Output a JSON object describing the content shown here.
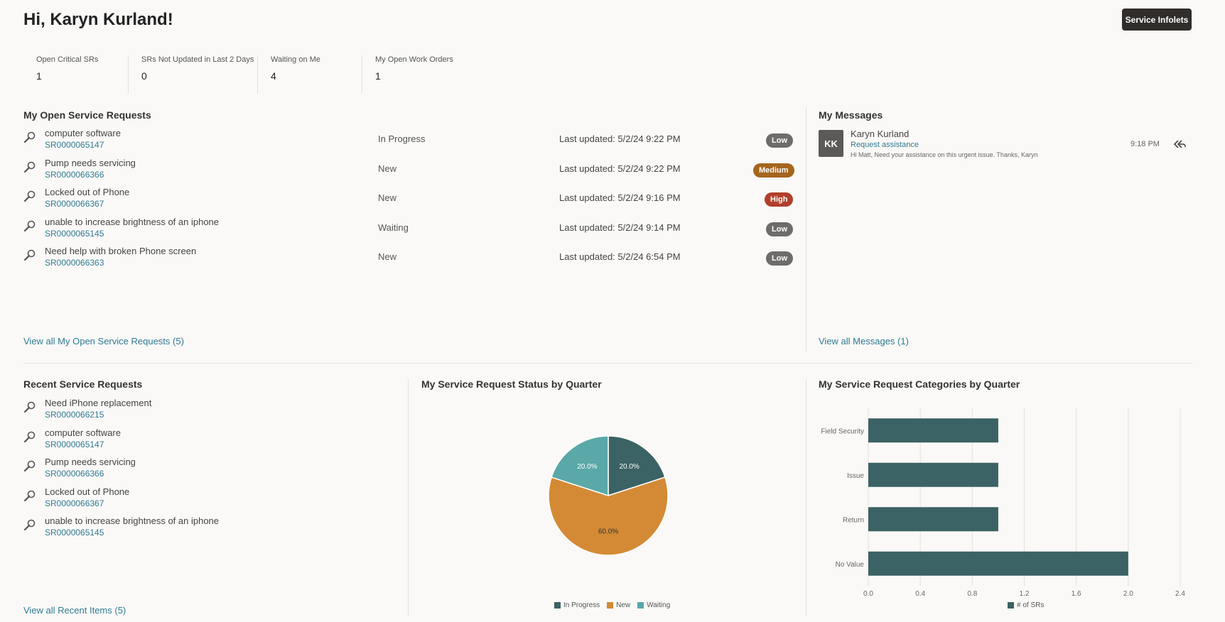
{
  "header": {
    "greeting": "Hi, Karyn Kurland!",
    "infolets_button": "Service Infolets"
  },
  "metrics": [
    {
      "label": "Open Critical SRs",
      "value": "1"
    },
    {
      "label": "SRs Not Updated in Last 2 Days",
      "value": "0"
    },
    {
      "label": "Waiting on Me",
      "value": "4"
    },
    {
      "label": "My Open Work Orders",
      "value": "1"
    }
  ],
  "open_srs": {
    "title": "My Open Service Requests",
    "rows": [
      {
        "title": "computer software",
        "number": "SR0000065147",
        "status": "In Progress",
        "updated": "Last updated: 5/2/24 9:22 PM",
        "priority": "Low",
        "priority_color": "#6e6c69"
      },
      {
        "title": "Pump needs servicing",
        "number": "SR0000066366",
        "status": "New",
        "updated": "Last updated: 5/2/24 9:22 PM",
        "priority": "Medium",
        "priority_color": "#a5651e"
      },
      {
        "title": "Locked out of Phone",
        "number": "SR0000066367",
        "status": "New",
        "updated": "Last updated: 5/2/24 9:16 PM",
        "priority": "High",
        "priority_color": "#b13f2b"
      },
      {
        "title": "unable to increase brightness of an iphone",
        "number": "SR0000065145",
        "status": "Waiting",
        "updated": "Last updated: 5/2/24 9:14 PM",
        "priority": "Low",
        "priority_color": "#6e6c69"
      },
      {
        "title": "Need help with broken Phone screen",
        "number": "SR0000066363",
        "status": "New",
        "updated": "Last updated: 5/2/24 6:54 PM",
        "priority": "Low",
        "priority_color": "#6e6c69"
      }
    ],
    "view_all": "View all My Open Service Requests (5)"
  },
  "messages": {
    "title": "My Messages",
    "items": [
      {
        "initials": "KK",
        "sender": "Karyn Kurland",
        "subject": "Request assistance",
        "preview": "Hi Matt, Need your assistance on this urgent issue. Thanks, Karyn",
        "time": "9:18 PM"
      }
    ],
    "view_all": "View all Messages (1)"
  },
  "recent_srs": {
    "title": "Recent Service Requests",
    "rows": [
      {
        "title": "Need iPhone replacement",
        "number": "SR0000066215"
      },
      {
        "title": "computer software",
        "number": "SR0000065147"
      },
      {
        "title": "Pump needs servicing",
        "number": "SR0000066366"
      },
      {
        "title": "Locked out of Phone",
        "number": "SR0000066367"
      },
      {
        "title": "unable to increase brightness of an iphone",
        "number": "SR0000065145"
      }
    ],
    "view_all": "View all Recent Items (5)"
  },
  "icons": {
    "sr_icon": "wrench-icon",
    "reply_icon": "reply-all-icon"
  },
  "chart_data": [
    {
      "type": "pie",
      "title": "My Service Request Status by Quarter",
      "categories": [
        "In Progress",
        "New",
        "Waiting"
      ],
      "values": [
        20.0,
        60.0,
        20.0
      ],
      "labels": [
        "20.0%",
        "60.0%",
        "20.0%"
      ],
      "colors": [
        "#3b6264",
        "#d48a35",
        "#5aa8a8"
      ],
      "legend": "bottom"
    },
    {
      "type": "bar",
      "orientation": "horizontal",
      "title": "My Service Request Categories by Quarter",
      "categories": [
        "Field Security",
        "Issue",
        "Return",
        "No Value"
      ],
      "series": [
        {
          "name": "# of SRs",
          "values": [
            1,
            1,
            1,
            2
          ]
        }
      ],
      "xlim": [
        0,
        2.4
      ],
      "xticks": [
        "0.0",
        "0.4",
        "0.8",
        "1.2",
        "1.6",
        "2.0",
        "2.4"
      ],
      "color": "#3b6264",
      "grid": true,
      "legend": "bottom"
    }
  ]
}
